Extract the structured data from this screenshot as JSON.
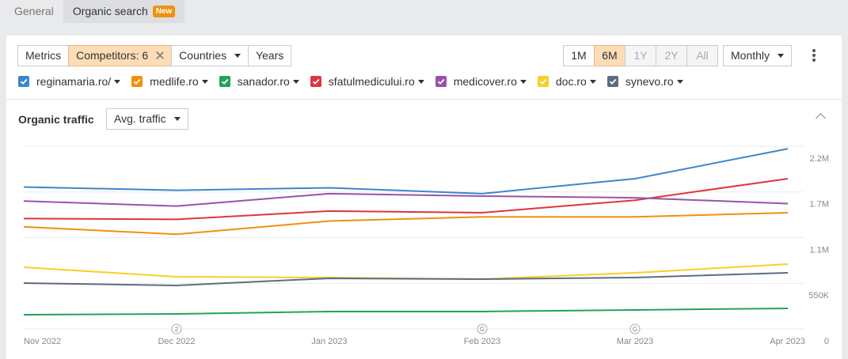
{
  "tabs": [
    "General",
    "Organic search"
  ],
  "tab_badge": "New",
  "toolbar": {
    "buttons": [
      "Metrics",
      "Competitors: 6",
      "Countries",
      "Years"
    ],
    "periods": [
      "1M",
      "6M",
      "1Y",
      "2Y",
      "All"
    ],
    "active_period": "6M",
    "disabled_periods": [
      "1Y",
      "2Y",
      "All"
    ],
    "interval": "Monthly"
  },
  "chart_data": {
    "type": "line",
    "title": "Organic traffic",
    "metric_selector": "Avg. traffic",
    "categories": [
      "Nov 2022",
      "Dec 2022",
      "Jan 2023",
      "Feb 2023",
      "Mar 2023",
      "Apr 2023"
    ],
    "series": [
      {
        "name": "reginamaria.ro/",
        "color": "#3b87cc",
        "values": [
          1710000,
          1670000,
          1700000,
          1630000,
          1810000,
          2170000
        ]
      },
      {
        "name": "medlife.ro",
        "color": "#f0910e",
        "values": [
          1230000,
          1140000,
          1300000,
          1350000,
          1350000,
          1400000
        ]
      },
      {
        "name": "sanador.ro",
        "color": "#21a35b",
        "values": [
          171000,
          181000,
          210000,
          210000,
          229000,
          248000
        ]
      },
      {
        "name": "sfatulmedicului.ro",
        "color": "#e0353c",
        "values": [
          1330000,
          1320000,
          1420000,
          1400000,
          1550000,
          1810000
        ]
      },
      {
        "name": "medicover.ro",
        "color": "#9a52a8",
        "values": [
          1540000,
          1480000,
          1630000,
          1600000,
          1580000,
          1510000
        ]
      },
      {
        "name": "doc.ro",
        "color": "#f5cf2a",
        "values": [
          743000,
          629000,
          619000,
          600000,
          676000,
          781000
        ]
      },
      {
        "name": "synevo.ro",
        "color": "#5d6d80",
        "values": [
          552000,
          524000,
          610000,
          600000,
          619000,
          676000
        ]
      }
    ],
    "ylim": [
      0,
      2200000
    ],
    "yticks": [
      0,
      {
        "value": 550000,
        "label": "550K"
      },
      {
        "value": 1100000,
        "label": "1.1M"
      },
      {
        "value": 1650000,
        "label": "1.7M"
      },
      {
        "value": 2200000,
        "label": "2.2M"
      }
    ],
    "grid": true,
    "annotations": [
      {
        "category": "Dec 2022",
        "label": "2"
      },
      {
        "category": "Feb 2023",
        "label": "G"
      },
      {
        "category": "Mar 2023",
        "label": "G"
      }
    ]
  }
}
